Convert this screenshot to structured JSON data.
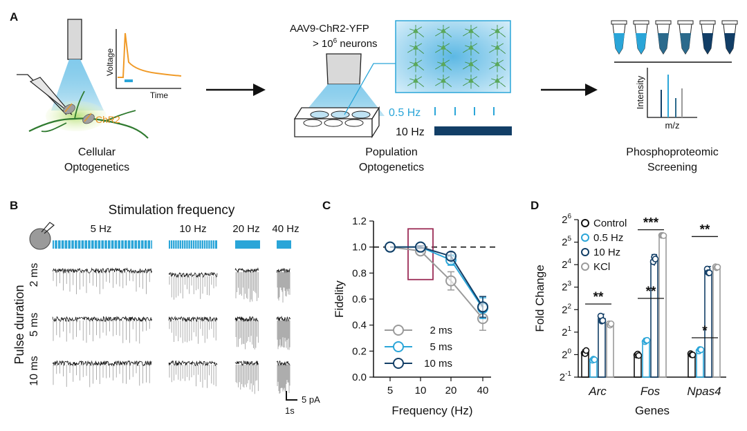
{
  "panel_a": {
    "label": "A",
    "cellular": {
      "chr2_label": "ChR2",
      "voltage_label": "Voltage",
      "time_label": "Time",
      "caption_line1": "Cellular",
      "caption_line2": "Optogenetics"
    },
    "population": {
      "vector_label": "AAV9-ChR2-YFP",
      "neurons_label_pre": "> 10",
      "neurons_exponent": "6",
      "neurons_label_post": " neurons",
      "low_freq_label": "0.5 Hz",
      "high_freq_label": "10 Hz",
      "caption_line1": "Population",
      "caption_line2": "Optogenetics"
    },
    "proteomics": {
      "intensity_label": "Intensity",
      "mz_label": "m/z",
      "caption_line1": "Phosphoproteomic",
      "caption_line2": "Screening"
    }
  },
  "panel_b": {
    "label": "B",
    "title": "Stimulation frequency",
    "frequencies": [
      "5 Hz",
      "10 Hz",
      "20 Hz",
      "40 Hz"
    ],
    "ylabel": "Pulse duration",
    "pulse_rows": [
      "2 ms",
      "5 ms",
      "10 ms"
    ],
    "scale_current": "5 pA",
    "scale_time": "1s"
  },
  "panel_c": {
    "label": "C",
    "chart_data": {
      "type": "line",
      "x": [
        5,
        10,
        20,
        40
      ],
      "xticklabels": [
        "5",
        "10",
        "20",
        "40"
      ],
      "xlabel": "Frequency (Hz)",
      "ylabel": "Fidelity",
      "ylim": [
        0.0,
        1.2
      ],
      "yticks": [
        "0.0",
        "0.2",
        "0.4",
        "0.6",
        "0.8",
        "1.0",
        "1.2"
      ],
      "reference_line": 1.0,
      "highlight_x": 10,
      "series": [
        {
          "name": "2 ms",
          "color": "#9a9a9a",
          "values": [
            1.0,
            0.97,
            0.74,
            0.45
          ],
          "errors": [
            0.0,
            0.01,
            0.07,
            0.09
          ]
        },
        {
          "name": "5 ms",
          "color": "#2aa5d8",
          "values": [
            1.0,
            1.0,
            0.9,
            0.53
          ],
          "errors": [
            0.0,
            0.01,
            0.04,
            0.08
          ]
        },
        {
          "name": "10 ms",
          "color": "#123e66",
          "values": [
            1.0,
            1.0,
            0.93,
            0.54
          ],
          "errors": [
            0.0,
            0.01,
            0.03,
            0.08
          ]
        }
      ]
    }
  },
  "panel_d": {
    "label": "D",
    "chart_data": {
      "type": "bar",
      "categories": [
        "Arc",
        "Fos",
        "Npas4"
      ],
      "xlabel": "Genes",
      "ylabel": "Fold Change",
      "yscale": "log2",
      "ylim": [
        -1,
        6
      ],
      "ytick_exponents": [
        "6",
        "5",
        "4",
        "3",
        "2",
        "1",
        "0",
        "-1"
      ],
      "series": [
        {
          "name": "Control",
          "color": "#111111",
          "values": [
            0.1,
            0.0,
            0.0
          ],
          "errors": [
            0.12,
            0.1,
            0.06
          ]
        },
        {
          "name": "0.5 Hz",
          "color": "#2aa5d8",
          "values": [
            -0.25,
            0.6,
            0.2
          ],
          "errors": [
            0.07,
            0.12,
            0.05
          ]
        },
        {
          "name": "10 Hz",
          "color": "#123e66",
          "values": [
            1.6,
            4.2,
            3.7
          ],
          "errors": [
            0.2,
            0.25,
            0.22
          ]
        },
        {
          "name": "KCl",
          "color": "#9a9a9a",
          "values": [
            1.35,
            5.3,
            3.9
          ],
          "errors": [
            0.06,
            0.04,
            0.05
          ]
        }
      ],
      "significance": [
        {
          "label": "**",
          "category": "Arc"
        },
        {
          "label": "**",
          "category": "Fos",
          "level": "low"
        },
        {
          "label": "***",
          "category": "Fos",
          "level": "high"
        },
        {
          "label": "*",
          "category": "Npas4",
          "level": "low"
        },
        {
          "label": "**",
          "category": "Npas4",
          "level": "high"
        }
      ]
    }
  }
}
